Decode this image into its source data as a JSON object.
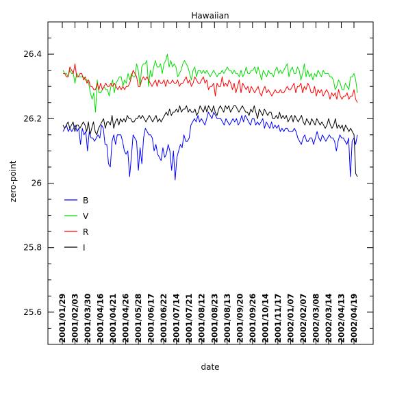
{
  "chart_data": {
    "type": "line",
    "title": "Hawaiian",
    "xlabel": "date",
    "ylabel": "zero-point",
    "ylim": [
      25.5,
      26.5
    ],
    "yticks": [
      25.6,
      25.8,
      26,
      26.2,
      26.4
    ],
    "ytick_labels": [
      "25.6",
      "25.8",
      "26",
      "26.2",
      "26.4"
    ],
    "xticks": [
      "2001/01/29",
      "2001/02/03",
      "2001/03/30",
      "2001/04/16",
      "2001/04/21",
      "2001/04/26",
      "2001/05/28",
      "2001/06/17",
      "2001/06/22",
      "2001/07/14",
      "2001/07/21",
      "2001/08/12",
      "2001/08/23",
      "2001/08/13",
      "2001/09/20",
      "2001/09/26",
      "2001/10/14",
      "2001/11/17",
      "2002/01/07",
      "2002/02/07",
      "2002/03/08",
      "2002/03/14",
      "2002/04/13",
      "2002/04/19"
    ],
    "legend_position": "left",
    "grid": false,
    "series": [
      {
        "name": "B",
        "color": "#0000ff",
        "values": [
          26.16,
          26.17,
          26.18,
          26.16,
          26.17,
          26.16,
          26.17,
          26.18,
          26.16,
          26.17,
          26.12,
          26.17,
          26.15,
          26.16,
          26.1,
          26.16,
          26.14,
          26.14,
          26.13,
          26.14,
          26.15,
          26.14,
          26.18,
          26.17,
          26.12,
          26.12,
          26.06,
          26.05,
          26.13,
          26.15,
          26.12,
          26.15,
          26.15,
          26.15,
          26.13,
          26.1,
          26.09,
          26.1,
          26.02,
          26.08,
          26.15,
          26.14,
          26.13,
          26.04,
          26.11,
          26.06,
          26.14,
          26.17,
          26.16,
          26.15,
          26.15,
          26.14,
          26.1,
          26.12,
          26.09,
          26.08,
          26.07,
          26.11,
          26.08,
          26.09,
          26.12,
          26.1,
          26.04,
          26.1,
          26.01,
          26.08,
          26.1,
          26.12,
          26.11,
          26.15,
          26.13,
          26.13,
          26.14,
          26.18,
          26.19,
          26.2,
          26.19,
          26.21,
          26.19,
          26.2,
          26.19,
          26.18,
          26.2,
          26.22,
          26.21,
          26.2,
          26.22,
          26.21,
          26.2,
          26.2,
          26.2,
          26.19,
          26.18,
          26.2,
          26.19,
          26.18,
          26.19,
          26.2,
          26.19,
          26.2,
          26.18,
          26.19,
          26.21,
          26.19,
          26.21,
          26.2,
          26.19,
          26.18,
          26.2,
          26.2,
          26.18,
          26.19,
          26.18,
          26.19,
          26.2,
          26.17,
          26.19,
          26.18,
          26.17,
          26.19,
          26.17,
          26.18,
          26.17,
          26.18,
          26.16,
          26.17,
          26.16,
          26.17,
          26.17,
          26.16,
          26.16,
          26.16,
          26.17,
          26.16,
          26.14,
          26.13,
          26.12,
          26.14,
          26.15,
          26.13,
          26.13,
          26.14,
          26.14,
          26.12,
          26.14,
          26.16,
          26.14,
          26.13,
          26.15,
          26.14,
          26.13,
          26.14,
          26.15,
          26.14,
          26.14,
          26.13,
          26.1,
          26.13,
          26.15,
          26.14,
          26.14,
          26.13,
          26.12,
          26.14,
          26.02,
          26.13,
          26.14,
          26.12,
          26.15
        ]
      },
      {
        "name": "V",
        "color": "#00dd00",
        "values": [
          26.35,
          26.34,
          26.34,
          26.33,
          26.35,
          26.34,
          26.34,
          26.31,
          26.34,
          26.33,
          26.33,
          26.33,
          26.33,
          26.32,
          26.32,
          26.31,
          26.28,
          26.26,
          26.28,
          26.22,
          26.32,
          26.28,
          26.28,
          26.29,
          26.3,
          26.29,
          26.29,
          26.27,
          26.3,
          26.32,
          26.28,
          26.31,
          26.32,
          26.33,
          26.33,
          26.3,
          26.32,
          26.31,
          26.34,
          26.32,
          26.34,
          26.33,
          26.33,
          26.37,
          26.35,
          26.3,
          26.36,
          26.37,
          26.37,
          26.38,
          26.3,
          26.35,
          26.33,
          26.36,
          26.38,
          26.36,
          26.36,
          26.37,
          26.34,
          26.37,
          26.38,
          26.4,
          26.36,
          26.38,
          26.36,
          26.37,
          26.36,
          26.33,
          26.34,
          26.35,
          26.37,
          26.38,
          26.37,
          26.36,
          26.34,
          26.32,
          26.35,
          26.36,
          26.33,
          26.35,
          26.35,
          26.34,
          26.35,
          26.34,
          26.35,
          26.34,
          26.33,
          26.34,
          26.35,
          26.34,
          26.33,
          26.34,
          26.34,
          26.35,
          26.34,
          26.35,
          26.36,
          26.35,
          26.35,
          26.34,
          26.35,
          26.34,
          26.34,
          26.33,
          26.35,
          26.33,
          26.34,
          26.36,
          26.34,
          26.34,
          26.35,
          26.35,
          26.36,
          26.34,
          26.36,
          26.34,
          26.32,
          26.35,
          26.34,
          26.33,
          26.35,
          26.34,
          26.34,
          26.33,
          26.35,
          26.36,
          26.34,
          26.35,
          26.34,
          26.35,
          26.36,
          26.37,
          26.33,
          26.35,
          26.36,
          26.34,
          26.34,
          26.36,
          26.35,
          26.32,
          26.34,
          26.37,
          26.33,
          26.35,
          26.33,
          26.34,
          26.32,
          26.34,
          26.33,
          26.35,
          26.34,
          26.33,
          26.35,
          26.34,
          26.34,
          26.34,
          26.33,
          26.33,
          26.32,
          26.29,
          26.3,
          26.32,
          26.31,
          26.29,
          26.29,
          26.31,
          26.3,
          26.29,
          26.33,
          26.33,
          26.34,
          26.32,
          26.28
        ]
      },
      {
        "name": "R",
        "color": "#ff0000",
        "values": [
          26.34,
          26.34,
          26.33,
          26.33,
          26.36,
          26.35,
          26.34,
          26.37,
          26.33,
          26.33,
          26.34,
          26.34,
          26.32,
          26.33,
          26.31,
          26.32,
          26.3,
          26.3,
          26.29,
          26.29,
          26.31,
          26.29,
          26.31,
          26.29,
          26.3,
          26.31,
          26.3,
          26.3,
          26.31,
          26.3,
          26.31,
          26.3,
          26.29,
          26.3,
          26.29,
          26.3,
          26.29,
          26.3,
          26.3,
          26.31,
          26.33,
          26.35,
          26.34,
          26.33,
          26.3,
          26.3,
          26.32,
          26.33,
          26.32,
          26.33,
          26.32,
          26.31,
          26.3,
          26.31,
          26.32,
          26.3,
          26.32,
          26.31,
          26.31,
          26.32,
          26.3,
          26.32,
          26.31,
          26.31,
          26.32,
          26.31,
          26.31,
          26.32,
          26.3,
          26.31,
          26.31,
          26.32,
          26.33,
          26.31,
          26.32,
          26.3,
          26.31,
          26.33,
          26.32,
          26.31,
          26.31,
          26.32,
          26.33,
          26.31,
          26.32,
          26.29,
          26.3,
          26.3,
          26.31,
          26.27,
          26.31,
          26.3,
          26.3,
          26.33,
          26.3,
          26.31,
          26.3,
          26.32,
          26.31,
          26.29,
          26.31,
          26.28,
          26.3,
          26.32,
          26.28,
          26.31,
          26.3,
          26.29,
          26.3,
          26.28,
          26.3,
          26.29,
          26.28,
          26.29,
          26.3,
          26.28,
          26.27,
          26.29,
          26.3,
          26.28,
          26.29,
          26.28,
          26.27,
          26.28,
          26.29,
          26.28,
          26.28,
          26.29,
          26.28,
          26.28,
          26.29,
          26.3,
          26.29,
          26.29,
          26.3,
          26.31,
          26.28,
          26.3,
          26.3,
          26.31,
          26.28,
          26.3,
          26.29,
          26.31,
          26.3,
          26.28,
          26.28,
          26.3,
          26.27,
          26.29,
          26.28,
          26.29,
          26.27,
          26.28,
          26.29,
          26.28,
          26.26,
          26.28,
          26.27,
          26.28,
          26.26,
          26.29,
          26.27,
          26.26,
          26.27,
          26.27,
          26.28,
          26.26,
          26.27,
          26.27,
          26.29,
          26.26,
          26.25
        ]
      },
      {
        "name": "I",
        "color": "#000000",
        "values": [
          26.18,
          26.17,
          26.18,
          26.19,
          26.17,
          26.18,
          26.19,
          26.16,
          26.18,
          26.18,
          26.17,
          26.18,
          26.19,
          26.18,
          26.16,
          26.19,
          26.15,
          26.17,
          26.19,
          26.16,
          26.15,
          26.17,
          26.18,
          26.19,
          26.2,
          26.17,
          26.19,
          26.19,
          26.18,
          26.21,
          26.17,
          26.19,
          26.2,
          26.18,
          26.2,
          26.19,
          26.2,
          26.19,
          26.21,
          26.2,
          26.2,
          26.19,
          26.19,
          26.2,
          26.2,
          26.21,
          26.2,
          26.21,
          26.2,
          26.19,
          26.2,
          26.21,
          26.2,
          26.19,
          26.2,
          26.21,
          26.19,
          26.2,
          26.19,
          26.2,
          26.21,
          26.22,
          26.21,
          26.23,
          26.21,
          26.22,
          26.22,
          26.23,
          26.22,
          26.24,
          26.22,
          26.23,
          26.23,
          26.24,
          26.22,
          26.23,
          26.22,
          26.22,
          26.23,
          26.21,
          26.22,
          26.24,
          26.23,
          26.22,
          26.24,
          26.22,
          26.24,
          26.23,
          26.22,
          26.24,
          26.22,
          26.21,
          26.23,
          26.24,
          26.23,
          26.22,
          26.24,
          26.23,
          26.24,
          26.22,
          26.23,
          26.24,
          26.24,
          26.23,
          26.22,
          26.23,
          26.24,
          26.23,
          26.22,
          26.22,
          26.21,
          26.23,
          26.22,
          26.24,
          26.22,
          26.2,
          26.23,
          26.22,
          26.21,
          26.23,
          26.22,
          26.21,
          26.22,
          26.22,
          26.2,
          26.2,
          26.21,
          26.2,
          26.22,
          26.2,
          26.21,
          26.2,
          26.21,
          26.19,
          26.2,
          26.21,
          26.19,
          26.21,
          26.2,
          26.19,
          26.2,
          26.21,
          26.19,
          26.18,
          26.2,
          26.19,
          26.18,
          26.2,
          26.19,
          26.18,
          26.2,
          26.19,
          26.18,
          26.19,
          26.18,
          26.17,
          26.18,
          26.2,
          26.18,
          26.17,
          26.18,
          26.2,
          26.17,
          26.18,
          26.17,
          26.18,
          26.16,
          26.18,
          26.17,
          26.16,
          26.17,
          26.16,
          26.15,
          26.03,
          26.02
        ]
      }
    ]
  }
}
